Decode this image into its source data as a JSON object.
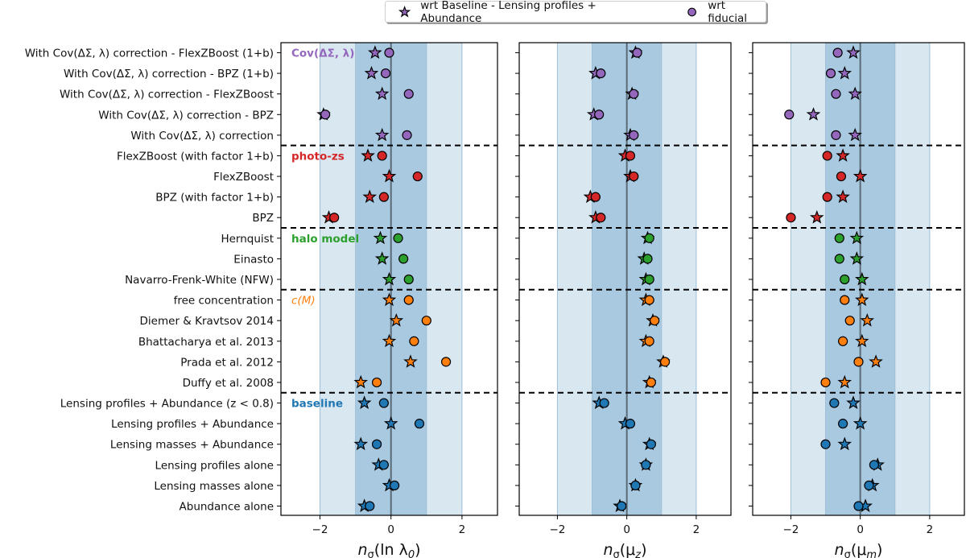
{
  "chart_data": {
    "type": "scatter",
    "title": "",
    "legend": {
      "placement": "top-center",
      "entries": [
        {
          "label": "wrt Baseline - Lensing profiles + Abundance",
          "marker": "star",
          "color": "#9467bd"
        },
        {
          "label": "wrt fiducial",
          "marker": "circle",
          "color": "#9467bd"
        }
      ]
    },
    "categories": [
      "With Cov(ΔΣ, λ) correction - FlexZBoost (1+b)",
      "With Cov(ΔΣ, λ) correction - BPZ (1+b)",
      "With Cov(ΔΣ, λ) correction - FlexZBoost",
      "With Cov(ΔΣ, λ) correction - BPZ",
      "With Cov(ΔΣ, λ) correction",
      "FlexZBoost (with factor 1+b)",
      "FlexZBoost",
      "BPZ (with factor 1+b)",
      "BPZ",
      "Hernquist",
      "Einasto",
      "Navarro-Frenk-White (NFW)",
      "free concentration",
      "Diemer & Kravtsov 2014",
      "Bhattacharya et al. 2013",
      "Prada et al. 2012",
      "Duffy et al. 2008",
      "Lensing profiles + Abundance (z < 0.8)",
      "Lensing profiles + Abundance",
      "Lensing masses + Abundance",
      "Lensing profiles alone",
      "Lensing masses alone",
      "Abundance alone"
    ],
    "groups": [
      {
        "label": "Cov(ΔΣ, λ)",
        "color": "#9467bd",
        "rows": [
          0,
          4
        ],
        "bold": true
      },
      {
        "label": "photo-zs",
        "color": "#d62728",
        "rows": [
          5,
          8
        ],
        "bold": true
      },
      {
        "label": "halo model",
        "color": "#2ca02c",
        "rows": [
          9,
          11
        ],
        "bold": true
      },
      {
        "label": "c(M)",
        "color": "#ff7f0e",
        "rows": [
          12,
          16
        ],
        "bold": false
      },
      {
        "label": "baseline",
        "color": "#1f77b4",
        "rows": [
          17,
          22
        ],
        "bold": true
      }
    ],
    "bands": {
      "inner_sigma": 1,
      "outer_sigma": 2,
      "inner_color": "#a9c9e1",
      "outer_color": "#d9e7f1"
    },
    "xlim": [
      -3,
      3
    ],
    "xticks": [
      -2,
      0,
      2
    ],
    "xtick_labels": [
      "−2",
      "0",
      "2"
    ],
    "panels": [
      {
        "xlabel": "n_σ(ln λ₀)",
        "xlabel_parts": {
          "main": "n",
          "sub": "σ",
          "arg": "(ln λ",
          "argsub": "0",
          "close": ")"
        },
        "star": [
          -0.45,
          -0.55,
          -0.25,
          -1.9,
          -0.25,
          -0.65,
          -0.05,
          -0.6,
          -1.75,
          -0.3,
          -0.25,
          -0.05,
          -0.05,
          0.15,
          -0.05,
          0.55,
          -0.85,
          -0.75,
          0.0,
          -0.85,
          -0.35,
          -0.05,
          -0.75
        ],
        "circle": [
          -0.05,
          -0.15,
          0.5,
          -1.85,
          0.45,
          -0.25,
          0.75,
          -0.2,
          -1.6,
          0.2,
          0.35,
          0.5,
          0.5,
          1.0,
          0.65,
          1.55,
          -0.4,
          -0.2,
          0.8,
          -0.4,
          -0.2,
          0.1,
          -0.6
        ]
      },
      {
        "xlabel": "n_σ(μ_z)",
        "xlabel_parts": {
          "main": "n",
          "sub": "σ",
          "arg": "(μ",
          "argsub": "z",
          "close": ")"
        },
        "star": [
          0.25,
          -0.9,
          0.15,
          -0.95,
          0.1,
          -0.05,
          0.1,
          -1.05,
          -0.9,
          0.6,
          0.5,
          0.55,
          0.55,
          0.75,
          0.55,
          1.05,
          0.65,
          -0.8,
          -0.05,
          0.65,
          0.55,
          0.25,
          -0.2
        ],
        "circle": [
          0.3,
          -0.75,
          0.2,
          -0.8,
          0.2,
          0.1,
          0.2,
          -0.9,
          -0.75,
          0.65,
          0.6,
          0.65,
          0.65,
          0.8,
          0.65,
          1.1,
          0.7,
          -0.65,
          0.1,
          0.7,
          0.55,
          0.25,
          -0.15
        ]
      },
      {
        "xlabel": "n_σ(μ_m)",
        "xlabel_parts": {
          "main": "n",
          "sub": "σ",
          "arg": "(μ",
          "argsub": "m",
          "close": ")"
        },
        "star": [
          -0.2,
          -0.45,
          -0.15,
          -1.35,
          -0.15,
          -0.5,
          0.0,
          -0.5,
          -1.25,
          -0.1,
          -0.1,
          0.05,
          0.05,
          0.2,
          0.05,
          0.45,
          -0.45,
          -0.2,
          0.0,
          -0.45,
          0.5,
          0.35,
          0.15
        ],
        "circle": [
          -0.65,
          -0.85,
          -0.7,
          -2.05,
          -0.7,
          -0.95,
          -0.55,
          -0.95,
          -2.0,
          -0.6,
          -0.6,
          -0.45,
          -0.45,
          -0.3,
          -0.5,
          -0.05,
          -1.0,
          -0.75,
          -0.5,
          -1.0,
          0.4,
          0.25,
          -0.05
        ]
      }
    ]
  }
}
